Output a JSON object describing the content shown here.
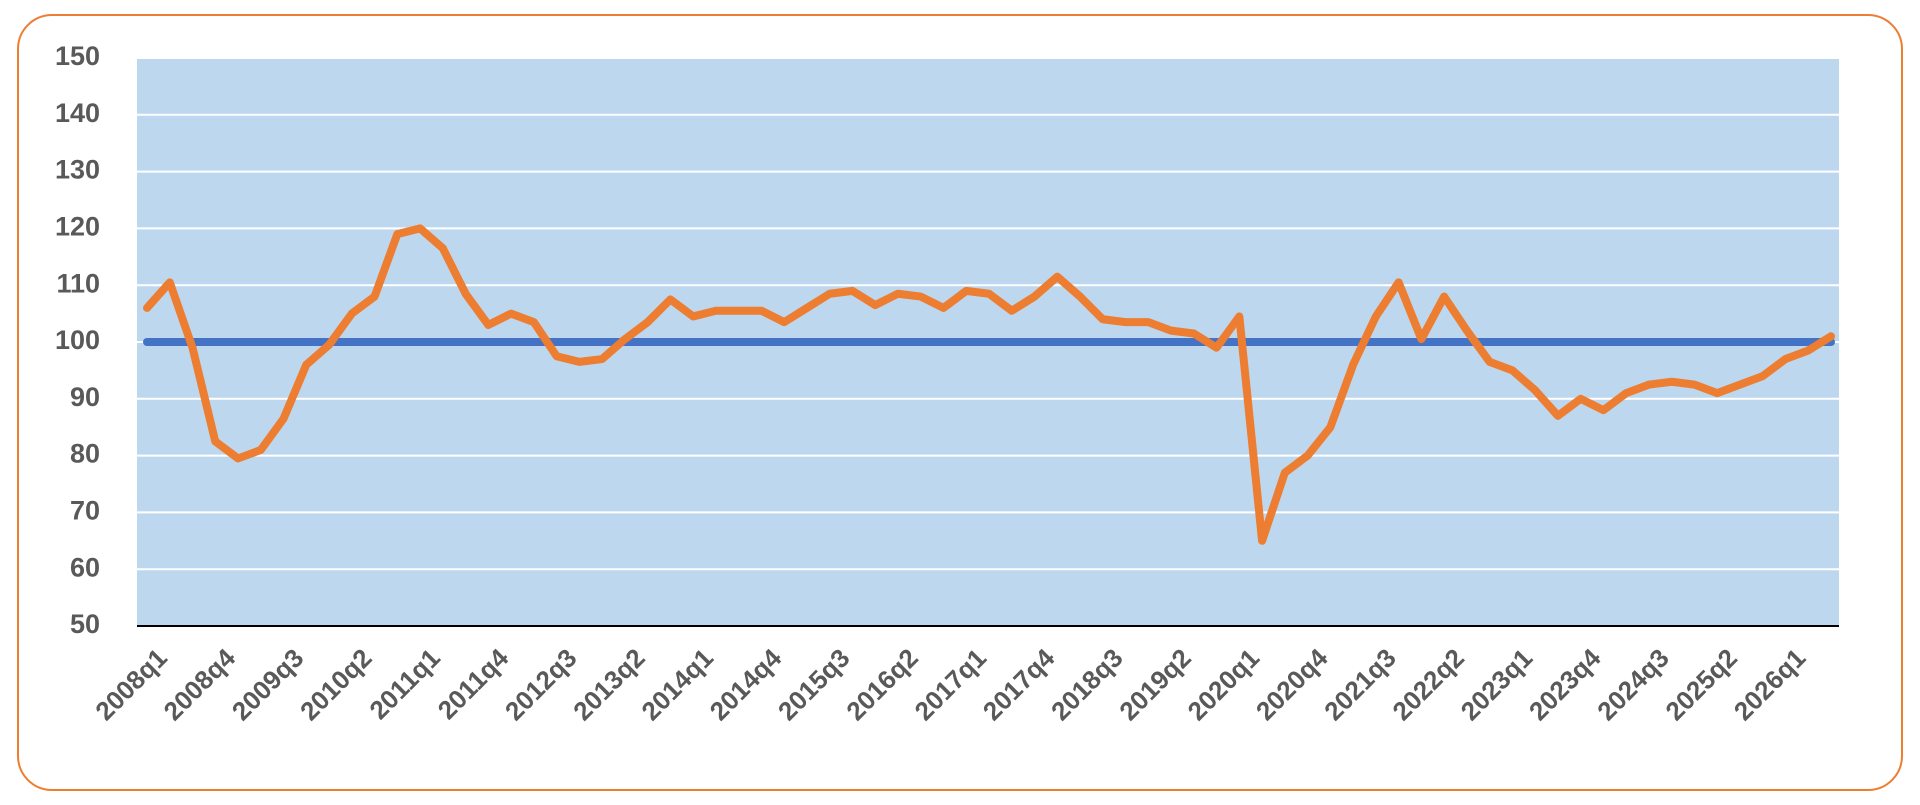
{
  "chart_data": {
    "type": "line",
    "categories": [
      "2008q1",
      null,
      null,
      "2008q4",
      null,
      null,
      "2009q3",
      null,
      null,
      "2010q2",
      null,
      null,
      "2011q1",
      null,
      null,
      "2011q4",
      null,
      null,
      "2012q3",
      null,
      null,
      "2013q2",
      null,
      null,
      "2014q1",
      null,
      null,
      "2014q4",
      null,
      null,
      "2015q3",
      null,
      null,
      "2016q2",
      null,
      null,
      "2017q1",
      null,
      null,
      "2017q4",
      null,
      null,
      "2018q3",
      null,
      null,
      "2019q2",
      null,
      null,
      "2020q1",
      null,
      null,
      "2020q4",
      null,
      null,
      "2021q3",
      null,
      null,
      "2022q2",
      null,
      null,
      "2023q1",
      null,
      null,
      "2023q4",
      null,
      null,
      "2024q3",
      null,
      null,
      "2025q2",
      null,
      null,
      "2026q1",
      null,
      null
    ],
    "series": [
      {
        "color": "#4472c4",
        "values": [
          100,
          100,
          100,
          100,
          100,
          100,
          100,
          100,
          100,
          100,
          100,
          100,
          100,
          100,
          100,
          100,
          100,
          100,
          100,
          100,
          100,
          100,
          100,
          100,
          100,
          100,
          100,
          100,
          100,
          100,
          100,
          100,
          100,
          100,
          100,
          100,
          100,
          100,
          100,
          100,
          100,
          100,
          100,
          100,
          100,
          100,
          100,
          100,
          100,
          100,
          100,
          100,
          100,
          100,
          100,
          100,
          100,
          100,
          100,
          100,
          100,
          100,
          100,
          100,
          100,
          100,
          100,
          100,
          100,
          100,
          100,
          100,
          100,
          100,
          100
        ]
      },
      {
        "color": "#ed7d31",
        "values": [
          106,
          110.5,
          99,
          82.5,
          79.5,
          81,
          86.5,
          96,
          99.5,
          105,
          108,
          119,
          120,
          116.5,
          108.5,
          103,
          105,
          103.5,
          97.5,
          96.5,
          97,
          100.5,
          103.5,
          107.5,
          104.5,
          105.5,
          105.5,
          105.5,
          103.5,
          106,
          108.5,
          109,
          106.5,
          108.5,
          108,
          106,
          109,
          108.5,
          105.5,
          108,
          111.5,
          108,
          104,
          103.5,
          103.5,
          102,
          101.5,
          99,
          104.5,
          65,
          77,
          80,
          85,
          96,
          104.5,
          110.5,
          100.5,
          108,
          102,
          96.5,
          95,
          91.5,
          87,
          90,
          88,
          91,
          92.5,
          93,
          92.5,
          91,
          92.5,
          94,
          97,
          98.5,
          101
        ]
      }
    ],
    "ylim": [
      50,
      150
    ],
    "yticks": [
      50,
      60,
      70,
      80,
      90,
      100,
      110,
      120,
      130,
      140,
      150
    ],
    "grid": true,
    "plot_background": "#bdd7ee"
  }
}
